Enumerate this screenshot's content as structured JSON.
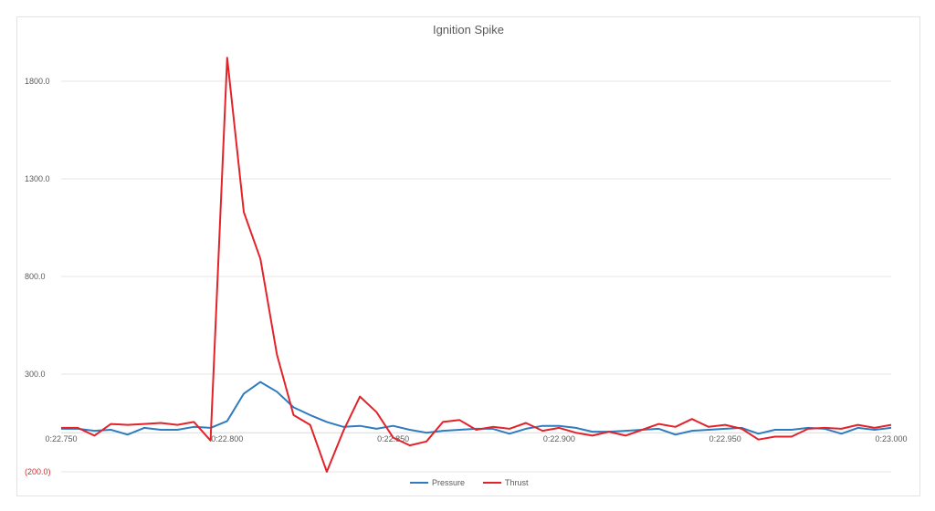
{
  "chart_data": {
    "type": "line",
    "title": "Ignition Spike",
    "xlabel": "",
    "ylabel": "",
    "x_tick_labels": [
      "0:22.750",
      "0:22.800",
      "0:22.850",
      "0:22.900",
      "0:22.950",
      "0:23.000"
    ],
    "y_tick_labels": [
      "(200.0)",
      "300.0",
      "800.0",
      "1300.0",
      "1800.0"
    ],
    "ylim": [
      -200,
      1980
    ],
    "grid": true,
    "legend": "bottom",
    "x": [
      "0:22.750",
      "0:22.755",
      "0:22.760",
      "0:22.765",
      "0:22.770",
      "0:22.775",
      "0:22.780",
      "0:22.785",
      "0:22.790",
      "0:22.795",
      "0:22.800",
      "0:22.805",
      "0:22.810",
      "0:22.815",
      "0:22.820",
      "0:22.825",
      "0:22.830",
      "0:22.835",
      "0:22.840",
      "0:22.845",
      "0:22.850",
      "0:22.855",
      "0:22.860",
      "0:22.865",
      "0:22.870",
      "0:22.875",
      "0:22.880",
      "0:22.885",
      "0:22.890",
      "0:22.895",
      "0:22.900",
      "0:22.905",
      "0:22.910",
      "0:22.915",
      "0:22.920",
      "0:22.925",
      "0:22.930",
      "0:22.935",
      "0:22.940",
      "0:22.945",
      "0:22.950",
      "0:22.955",
      "0:22.960",
      "0:22.965",
      "0:22.970",
      "0:22.975",
      "0:22.980",
      "0:22.985",
      "0:22.990",
      "0:22.995",
      "0:23.000"
    ],
    "series": [
      {
        "name": "Pressure",
        "color": "#2e7bbf",
        "values": [
          20,
          20,
          10,
          15,
          -10,
          25,
          15,
          15,
          30,
          25,
          60,
          200,
          260,
          210,
          130,
          90,
          55,
          30,
          35,
          20,
          35,
          15,
          0,
          10,
          15,
          20,
          20,
          -5,
          20,
          35,
          35,
          25,
          5,
          5,
          10,
          15,
          20,
          -10,
          10,
          15,
          20,
          25,
          -5,
          15,
          15,
          25,
          20,
          -5,
          25,
          15,
          25
        ]
      },
      {
        "name": "Thrust",
        "color": "#e2232a",
        "values": [
          25,
          25,
          -15,
          45,
          40,
          45,
          50,
          40,
          55,
          -40,
          1920,
          1130,
          890,
          400,
          90,
          40,
          -200,
          10,
          185,
          105,
          -25,
          -65,
          -45,
          55,
          65,
          15,
          30,
          20,
          50,
          10,
          25,
          0,
          -15,
          5,
          -15,
          15,
          45,
          30,
          70,
          30,
          40,
          20,
          -35,
          -20,
          -20,
          20,
          25,
          20,
          40,
          25,
          40
        ]
      }
    ]
  }
}
